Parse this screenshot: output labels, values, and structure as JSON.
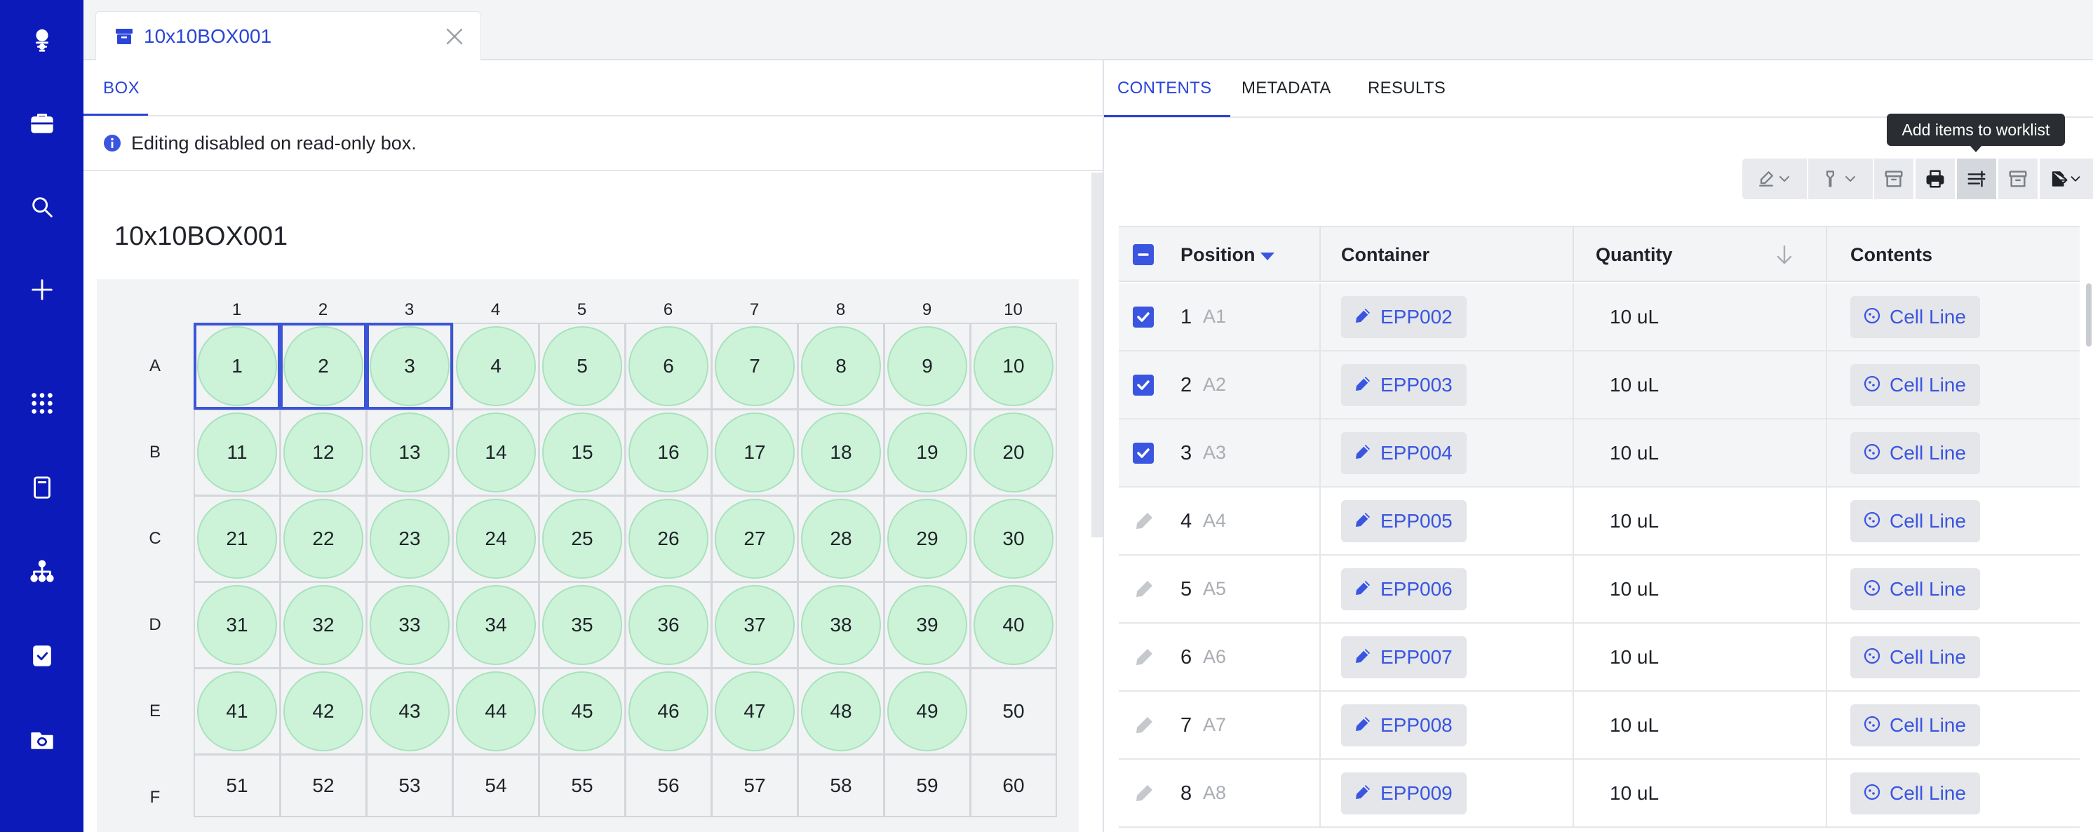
{
  "sidebar": {
    "items": [
      {
        "name": "logo-icon"
      },
      {
        "name": "briefcase-icon"
      },
      {
        "name": "search-icon"
      },
      {
        "name": "plus-icon"
      },
      {
        "name": "apps-grid-icon"
      },
      {
        "name": "notebook-icon"
      },
      {
        "name": "hierarchy-icon"
      },
      {
        "name": "clipboard-check-icon"
      },
      {
        "name": "folder-sync-icon"
      }
    ]
  },
  "tab": {
    "title": "10x10BOX001"
  },
  "left": {
    "tab_label": "BOX",
    "info_text": "Editing disabled on read-only box.",
    "box_title": "10x10BOX001"
  },
  "grid": {
    "col_labels": [
      "1",
      "2",
      "3",
      "4",
      "5",
      "6",
      "7",
      "8",
      "9",
      "10"
    ],
    "row_labels": [
      "A",
      "B",
      "C",
      "D",
      "E",
      "F"
    ],
    "filled_count": 49,
    "selected": [
      1,
      2,
      3
    ]
  },
  "right": {
    "tabs": [
      "CONTENTS",
      "METADATA",
      "RESULTS"
    ],
    "active_tab": "CONTENTS",
    "tooltip": "Add items to worklist",
    "columns": {
      "position": "Position",
      "container": "Container",
      "quantity": "Quantity",
      "contents": "Contents"
    },
    "rows": [
      {
        "num": "1",
        "coord": "A1",
        "container": "EPP002",
        "quantity": "10 uL",
        "contents": "Cell Line",
        "checked": true
      },
      {
        "num": "2",
        "coord": "A2",
        "container": "EPP003",
        "quantity": "10 uL",
        "contents": "Cell Line",
        "checked": true
      },
      {
        "num": "3",
        "coord": "A3",
        "container": "EPP004",
        "quantity": "10 uL",
        "contents": "Cell Line",
        "checked": true
      },
      {
        "num": "4",
        "coord": "A4",
        "container": "EPP005",
        "quantity": "10 uL",
        "contents": "Cell Line",
        "checked": false
      },
      {
        "num": "5",
        "coord": "A5",
        "container": "EPP006",
        "quantity": "10 uL",
        "contents": "Cell Line",
        "checked": false
      },
      {
        "num": "6",
        "coord": "A6",
        "container": "EPP007",
        "quantity": "10 uL",
        "contents": "Cell Line",
        "checked": false
      },
      {
        "num": "7",
        "coord": "A7",
        "container": "EPP008",
        "quantity": "10 uL",
        "contents": "Cell Line",
        "checked": false
      },
      {
        "num": "8",
        "coord": "A8",
        "container": "EPP009",
        "quantity": "10 uL",
        "contents": "Cell Line",
        "checked": false
      }
    ]
  },
  "colors": {
    "sidebar": "#0b1ab8",
    "accent": "#2b44d8",
    "well_fill": "#ccf3d8",
    "selection": "#3b55d6"
  }
}
